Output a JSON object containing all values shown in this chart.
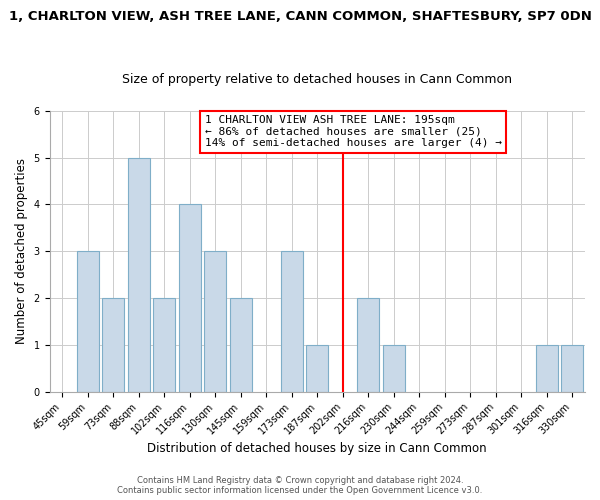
{
  "title": "1, CHARLTON VIEW, ASH TREE LANE, CANN COMMON, SHAFTESBURY, SP7 0DN",
  "subtitle": "Size of property relative to detached houses in Cann Common",
  "xlabel": "Distribution of detached houses by size in Cann Common",
  "ylabel": "Number of detached properties",
  "footer1": "Contains HM Land Registry data © Crown copyright and database right 2024.",
  "footer2": "Contains public sector information licensed under the Open Government Licence v3.0.",
  "bin_labels": [
    "45sqm",
    "59sqm",
    "73sqm",
    "88sqm",
    "102sqm",
    "116sqm",
    "130sqm",
    "145sqm",
    "159sqm",
    "173sqm",
    "187sqm",
    "202sqm",
    "216sqm",
    "230sqm",
    "244sqm",
    "259sqm",
    "273sqm",
    "287sqm",
    "301sqm",
    "316sqm",
    "330sqm"
  ],
  "bar_heights": [
    0,
    3,
    2,
    5,
    2,
    4,
    3,
    2,
    0,
    3,
    1,
    0,
    2,
    1,
    0,
    0,
    0,
    0,
    0,
    1,
    1
  ],
  "bar_color": "#c9d9e8",
  "bar_edgecolor": "#7faec8",
  "property_line_idx": 11,
  "annotation_title": "1 CHARLTON VIEW ASH TREE LANE: 195sqm",
  "annotation_line1": "← 86% of detached houses are smaller (25)",
  "annotation_line2": "14% of semi-detached houses are larger (4) →",
  "ylim": [
    0,
    6
  ],
  "yticks": [
    0,
    1,
    2,
    3,
    4,
    5,
    6
  ],
  "background_color": "#ffffff",
  "grid_color": "#cccccc",
  "title_fontsize": 9.5,
  "subtitle_fontsize": 9,
  "axis_label_fontsize": 8.5,
  "tick_fontsize": 7,
  "ann_fontsize": 8
}
